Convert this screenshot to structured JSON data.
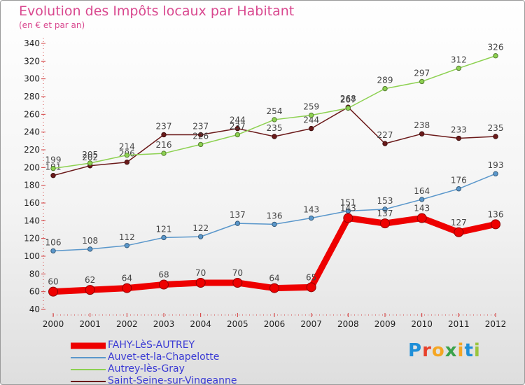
{
  "title": "Evolution des Impôts locaux par Habitant",
  "subtitle": "(en € et par an)",
  "logo": {
    "text": "Proxiti",
    "letter_colors": [
      "#1f8fd8",
      "#e8402a",
      "#f5a623",
      "#3aa24a",
      "#f5a623",
      "#1f8fd8",
      "#9bc53d"
    ]
  },
  "chart_data": {
    "type": "line",
    "title": "Evolution des Impôts locaux par Habitant",
    "subtitle": "(en € et par an)",
    "xlabel": "",
    "ylabel": "",
    "x": [
      "2000",
      "2001",
      "2002",
      "2003",
      "2004",
      "2005",
      "2006",
      "2007",
      "2008",
      "2009",
      "2010",
      "2011",
      "2012"
    ],
    "ylim": [
      40,
      340
    ],
    "yticks": [
      40,
      60,
      80,
      100,
      120,
      140,
      160,
      180,
      200,
      220,
      240,
      260,
      280,
      300,
      320,
      340
    ],
    "grid": false,
    "legend_position": "bottom-left",
    "series": [
      {
        "name": "Saint-Seine-sur-Vingeanne",
        "color": "#6b1a1a",
        "width": 1.5,
        "values": [
          191,
          202,
          206,
          237,
          237,
          244,
          235,
          244,
          268,
          227,
          238,
          233,
          235
        ],
        "labels": [
          "191",
          "202",
          "206",
          "237",
          "237",
          "244",
          "235",
          "244",
          "268",
          "227",
          "238",
          "233",
          "235"
        ]
      },
      {
        "name": "Autrey-lès-Gray",
        "color": "#8dd151",
        "width": 1.5,
        "values": [
          199,
          205,
          214,
          216,
          226,
          237,
          254,
          259,
          267,
          289,
          297,
          312,
          326
        ],
        "labels": [
          "199",
          "205",
          "214",
          "216",
          "226",
          "237",
          "254",
          "259",
          "267",
          "289",
          "297",
          "312",
          "326"
        ]
      },
      {
        "name": "Auvet-et-la-Chapelotte",
        "color": "#5a97cb",
        "width": 1.5,
        "values": [
          106,
          108,
          112,
          121,
          122,
          137,
          136,
          143,
          151,
          153,
          164,
          176,
          193
        ],
        "labels": [
          "106",
          "108",
          "112",
          "121",
          "122",
          "137",
          "136",
          "143",
          "151",
          "153",
          "164",
          "176",
          "193"
        ]
      },
      {
        "name": "FAHY-LèS-AUTREY",
        "color": "#ee0000",
        "width": 9,
        "values": [
          60,
          62,
          64,
          68,
          70,
          70,
          64,
          65,
          143,
          137,
          143,
          127,
          136
        ],
        "labels": [
          "60",
          "62",
          "64",
          "68",
          "70",
          "70",
          "64",
          "65",
          "143",
          "137",
          "143",
          "127",
          "136"
        ]
      }
    ],
    "legend_order": [
      3,
      2,
      1,
      0
    ]
  }
}
